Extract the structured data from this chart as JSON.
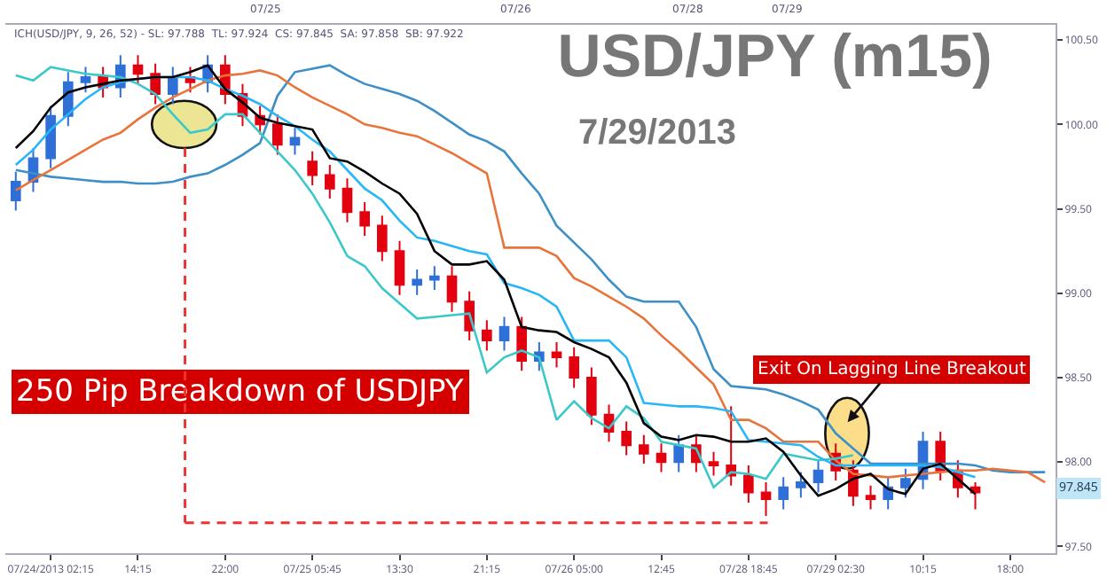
{
  "chart_data": {
    "type": "candlestick",
    "title": "USD/JPY (m15)",
    "subtitle": "7/29/2013",
    "annotations": [
      "ICH(USD/JPY, 9, 26, 52) - SL: 97.788  TL: 97.924  CS: 97.845  SA: 97.858  SB: 97.922",
      "250 Pip Breakdown of USDJPY",
      "Exit On Lagging Line Breakout",
      "07/25",
      "07/26",
      "07/28",
      "07/29",
      {
        "text": "97.845",
        "y": 97.845
      }
    ],
    "categories": [
      null,
      null,
      "07/24/2013 02:15",
      null,
      null,
      null,
      null,
      "14:15",
      null,
      null,
      null,
      null,
      "22:00",
      null,
      null,
      null,
      null,
      "07/25 05:45",
      null,
      null,
      null,
      null,
      "13:30",
      null,
      null,
      null,
      null,
      "21:15",
      null,
      null,
      null,
      null,
      "07/26 05:00",
      null,
      null,
      null,
      null,
      "12:45",
      null,
      null,
      null,
      null,
      "07/28 18:45",
      null,
      null,
      null,
      null,
      "07/29 02:30",
      null,
      null,
      null,
      null,
      "10:15",
      null,
      null,
      null,
      null,
      "18:00",
      null,
      null
    ],
    "ohlc": [
      [
        99.55,
        99.72,
        99.49,
        99.66
      ],
      [
        99.66,
        99.86,
        99.6,
        99.8
      ],
      [
        99.8,
        100.11,
        99.74,
        100.05
      ],
      [
        100.05,
        100.31,
        99.99,
        100.25
      ],
      [
        100.25,
        100.34,
        100.19,
        100.28
      ],
      [
        100.28,
        100.34,
        100.16,
        100.22
      ],
      [
        100.22,
        100.41,
        100.16,
        100.35
      ],
      [
        100.35,
        100.41,
        100.24,
        100.3
      ],
      [
        100.3,
        100.36,
        100.12,
        100.18
      ],
      [
        100.18,
        100.34,
        100.12,
        100.28
      ],
      [
        100.28,
        100.34,
        100.19,
        100.25
      ],
      [
        100.25,
        100.41,
        100.19,
        100.35
      ],
      [
        100.35,
        100.41,
        100.12,
        100.18
      ],
      [
        100.18,
        100.24,
        99.99,
        100.05
      ],
      [
        100.05,
        100.11,
        99.94,
        100.0
      ],
      [
        100.0,
        100.06,
        99.82,
        99.88
      ],
      [
        99.88,
        99.98,
        99.82,
        99.92
      ],
      [
        99.78,
        99.84,
        99.64,
        99.7
      ],
      [
        99.7,
        99.76,
        99.56,
        99.62
      ],
      [
        99.62,
        99.68,
        99.42,
        99.48
      ],
      [
        99.48,
        99.54,
        99.34,
        99.4
      ],
      [
        99.4,
        99.46,
        99.19,
        99.25
      ],
      [
        99.25,
        99.31,
        98.99,
        99.05
      ],
      [
        99.05,
        99.14,
        98.99,
        99.08
      ],
      [
        99.08,
        99.16,
        99.02,
        99.1
      ],
      [
        99.1,
        99.16,
        98.89,
        98.95
      ],
      [
        98.95,
        99.01,
        98.72,
        98.78
      ],
      [
        98.78,
        98.84,
        98.66,
        98.72
      ],
      [
        98.72,
        98.86,
        98.66,
        98.8
      ],
      [
        98.8,
        98.86,
        98.54,
        98.6
      ],
      [
        98.6,
        98.71,
        98.54,
        98.65
      ],
      [
        98.65,
        98.71,
        98.56,
        98.62
      ],
      [
        98.62,
        98.68,
        98.44,
        98.5
      ],
      [
        98.5,
        98.56,
        98.22,
        98.28
      ],
      [
        98.28,
        98.34,
        98.12,
        98.18
      ],
      [
        98.18,
        98.24,
        98.04,
        98.1
      ],
      [
        98.1,
        98.16,
        97.99,
        98.05
      ],
      [
        98.05,
        98.11,
        97.94,
        98.0
      ],
      [
        98.0,
        98.16,
        97.94,
        98.1
      ],
      [
        98.1,
        98.16,
        97.94,
        98.0
      ],
      [
        98.0,
        98.06,
        97.92,
        97.98
      ],
      [
        97.98,
        98.33,
        97.86,
        97.92
      ],
      [
        97.92,
        97.98,
        97.76,
        97.82
      ],
      [
        97.82,
        97.88,
        97.68,
        97.78
      ],
      [
        97.78,
        97.91,
        97.72,
        97.85
      ],
      [
        97.85,
        97.94,
        97.79,
        97.88
      ],
      [
        97.88,
        98.01,
        97.82,
        97.95
      ],
      [
        98.05,
        98.11,
        97.89,
        97.95
      ],
      [
        97.95,
        98.01,
        97.74,
        97.8
      ],
      [
        97.8,
        97.86,
        97.72,
        97.78
      ],
      [
        97.78,
        97.91,
        97.72,
        97.85
      ],
      [
        97.85,
        97.96,
        97.79,
        97.9
      ],
      [
        97.9,
        98.18,
        97.84,
        98.12
      ],
      [
        98.12,
        98.18,
        97.89,
        97.95
      ],
      [
        97.95,
        98.01,
        97.79,
        97.85
      ],
      [
        97.85,
        97.88,
        97.72,
        97.82
      ],
      null,
      null,
      null,
      null
    ],
    "colors": [
      "#2e6fd8",
      "#2e6fd8",
      "#2e6fd8",
      "#2e6fd8",
      "#2e6fd8",
      "#e3000f",
      "#2e6fd8",
      "#e3000f",
      "#e3000f",
      "#2e6fd8",
      "#e3000f",
      "#2e6fd8",
      "#e3000f",
      "#e3000f",
      "#e3000f",
      "#e3000f",
      "#2e6fd8",
      "#e3000f",
      "#e3000f",
      "#e3000f",
      "#e3000f",
      "#e3000f",
      "#e3000f",
      "#2e6fd8",
      "#2e6fd8",
      "#e3000f",
      "#e3000f",
      "#e3000f",
      "#2e6fd8",
      "#e3000f",
      "#2e6fd8",
      "#e3000f",
      "#e3000f",
      "#e3000f",
      "#e3000f",
      "#e3000f",
      "#e3000f",
      "#e3000f",
      "#2e6fd8",
      "#e3000f",
      "#e3000f",
      "#e3000f",
      "#e3000f",
      "#e3000f",
      "#2e6fd8",
      "#2e6fd8",
      "#2e6fd8",
      "#e3000f",
      "#e3000f",
      "#e3000f",
      "#2e6fd8",
      "#2e6fd8",
      "#2e6fd8",
      "#e3000f",
      "#e3000f",
      "#e3000f",
      null,
      null,
      null,
      null
    ],
    "series": [
      {
        "type": "line",
        "color": "#3d8fc8",
        "values": [
          99.73,
          99.71,
          99.69,
          99.68,
          99.67,
          99.66,
          99.66,
          99.65,
          99.65,
          99.66,
          99.69,
          99.71,
          99.76,
          99.82,
          99.89,
          100.17,
          100.31,
          100.33,
          100.35,
          100.29,
          100.24,
          100.21,
          100.18,
          100.14,
          100.08,
          100.01,
          99.94,
          99.9,
          99.84,
          99.71,
          99.59,
          99.4,
          99.3,
          99.2,
          99.08,
          98.98,
          98.95,
          98.95,
          98.95,
          98.8,
          98.55,
          98.45,
          98.44,
          98.43,
          98.4,
          98.36,
          98.31,
          98.17,
          98.08,
          97.99,
          97.99,
          97.99,
          97.99,
          97.99,
          97.99,
          97.98,
          97.95,
          97.94,
          97.94,
          97.94
        ]
      },
      {
        "type": "line",
        "color": "#e8743b",
        "values": [
          99.61,
          99.67,
          99.73,
          99.79,
          99.85,
          99.91,
          99.95,
          100.03,
          100.1,
          100.16,
          100.21,
          100.26,
          100.29,
          100.3,
          100.32,
          100.29,
          100.22,
          100.16,
          100.11,
          100.06,
          100.0,
          99.98,
          99.95,
          99.93,
          99.88,
          99.83,
          99.77,
          99.71,
          99.27,
          99.27,
          99.27,
          99.22,
          99.09,
          99.04,
          98.98,
          98.92,
          98.85,
          98.75,
          98.66,
          98.56,
          98.46,
          98.25,
          98.25,
          98.2,
          98.12,
          98.12,
          98.12,
          98.01,
          97.93,
          97.92,
          97.91,
          97.92,
          97.93,
          97.94,
          97.95,
          97.95,
          97.96,
          97.95,
          97.94,
          97.88
        ]
      },
      {
        "type": "line",
        "color": "#3cc8c8",
        "values": [
          100.29,
          100.26,
          100.34,
          100.32,
          100.3,
          100.29,
          100.28,
          100.24,
          100.18,
          100.06,
          99.95,
          99.97,
          100.06,
          100.06,
          99.95,
          99.84,
          99.73,
          99.59,
          99.42,
          99.22,
          99.16,
          99.03,
          98.94,
          98.85,
          98.86,
          98.87,
          98.88,
          98.53,
          98.62,
          98.66,
          98.62,
          98.25,
          98.36,
          98.26,
          98.2,
          98.33,
          98.26,
          98.12,
          98.1,
          98.08,
          97.85,
          97.94,
          97.93,
          97.9,
          98.05,
          98.03,
          98.01,
          98.02,
          98.04,
          null,
          null,
          null,
          null,
          null,
          null,
          null,
          null,
          null,
          null,
          null
        ]
      },
      {
        "type": "line",
        "color": "#29b6f6",
        "values": [
          99.76,
          99.85,
          99.97,
          100.06,
          100.15,
          100.22,
          100.25,
          100.27,
          100.28,
          100.28,
          100.28,
          100.26,
          100.21,
          100.17,
          100.12,
          100.05,
          99.99,
          99.91,
          99.84,
          99.73,
          99.62,
          99.55,
          99.43,
          99.33,
          99.31,
          99.28,
          99.25,
          99.23,
          99.06,
          99.03,
          98.99,
          98.92,
          98.72,
          98.72,
          98.72,
          98.62,
          98.35,
          98.34,
          98.33,
          98.33,
          98.32,
          98.3,
          98.13,
          98.12,
          98.11,
          98.1,
          98.03,
          97.98,
          97.98,
          97.98,
          97.98,
          97.98,
          97.98,
          97.97,
          97.94,
          97.91,
          null,
          null,
          null,
          null
        ]
      },
      {
        "type": "line",
        "color": "#000000",
        "values": [
          99.86,
          99.96,
          100.1,
          100.19,
          100.22,
          100.24,
          100.26,
          100.27,
          100.28,
          100.28,
          100.31,
          100.35,
          100.21,
          100.13,
          100.04,
          100.01,
          99.99,
          99.97,
          99.8,
          99.78,
          99.72,
          99.65,
          99.59,
          99.47,
          99.25,
          99.17,
          99.17,
          99.19,
          99.08,
          98.8,
          98.78,
          98.77,
          98.71,
          98.67,
          98.62,
          98.47,
          98.23,
          98.15,
          98.13,
          98.16,
          98.15,
          98.12,
          98.12,
          98.14,
          98.06,
          97.92,
          97.8,
          97.84,
          97.9,
          97.93,
          97.84,
          97.81,
          97.96,
          97.99,
          97.9,
          97.81,
          null,
          null,
          null,
          null
        ]
      }
    ],
    "ylim": [
      97.46,
      100.59
    ],
    "yticks": [
      {
        "value": 97.5,
        "label": "97.50"
      },
      {
        "value": 98,
        "label": "98.00"
      },
      {
        "value": 98.5,
        "label": "98.50"
      },
      {
        "value": 99,
        "label": "99.00"
      },
      {
        "value": 99.5,
        "label": "99.50"
      },
      {
        "value": 100,
        "label": "100.00"
      },
      {
        "value": 100.5,
        "label": "100.50"
      }
    ],
    "marker": "none",
    "line_style": "solid"
  }
}
